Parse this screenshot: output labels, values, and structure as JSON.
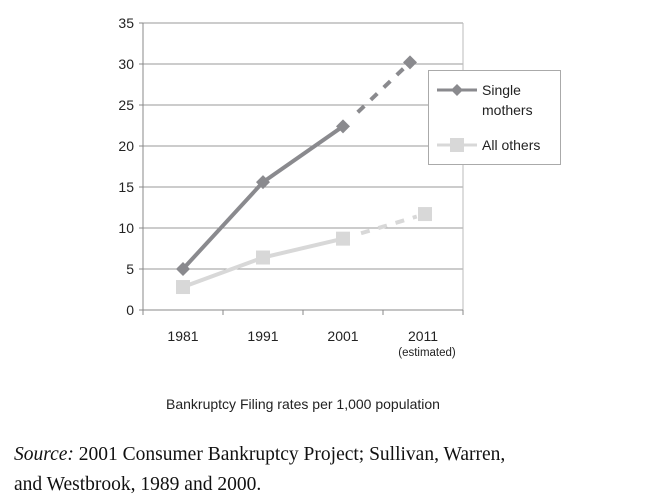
{
  "chart_data": {
    "type": "line",
    "title": "",
    "xlabel": "Bankruptcy Filing rates per 1,000 population",
    "ylabel": "",
    "categories": [
      "1981",
      "1991",
      "2001",
      "2011"
    ],
    "category_sublabels": [
      "",
      "",
      "",
      "(estimated)"
    ],
    "ylim": [
      0,
      35
    ],
    "yticks": [
      0,
      5,
      10,
      15,
      20,
      25,
      30,
      35
    ],
    "grid": true,
    "legend_position": "right",
    "series": [
      {
        "name": "Single mothers",
        "name_lines": [
          "Single",
          "mothers"
        ],
        "marker": "diamond",
        "color": "#8a8a8e",
        "values": [
          5.0,
          15.6,
          22.4,
          30.2
        ],
        "estimated_from_index": 2
      },
      {
        "name": "All others",
        "name_lines": [
          "All others"
        ],
        "marker": "square",
        "color": "#d8d8d8",
        "values": [
          2.8,
          6.4,
          8.7,
          11.7
        ],
        "estimated_from_index": 2
      }
    ]
  },
  "source": {
    "label": "Source:",
    "text": " 2001 Consumer Bankruptcy Project; Sullivan, Warren,",
    "text2": "and Westbrook, 1989 and 2000."
  }
}
